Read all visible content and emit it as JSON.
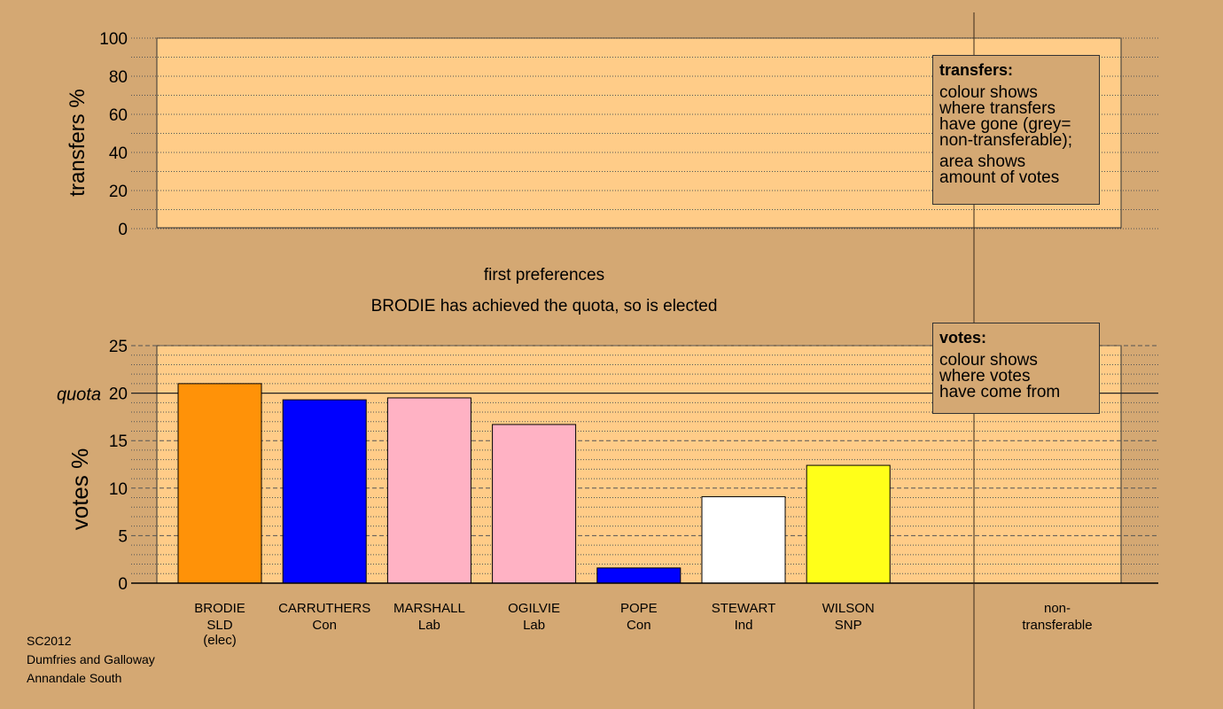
{
  "chart_data": [
    {
      "type": "bar",
      "ylabel": "transfers %",
      "ylim": [
        0,
        100
      ],
      "yticks": [
        0,
        20,
        40,
        60,
        80,
        100
      ],
      "grid": "dotted",
      "series": [],
      "legend": {
        "placement": "top-right",
        "title": "transfers:",
        "paragraphs": [
          [
            "colour shows",
            "where transfers",
            "have gone (grey=",
            "non-transferable);"
          ],
          [
            "area shows",
            "amount of votes"
          ]
        ]
      }
    },
    {
      "type": "bar",
      "title": "first preferences",
      "subtitle": "BRODIE has achieved the quota, so is elected",
      "ylabel": "votes %",
      "ylim": [
        0,
        25
      ],
      "yticks": [
        0,
        5,
        10,
        15,
        20,
        25
      ],
      "quota": 20,
      "quota_label": "quota",
      "grid": "dashed",
      "categories": [
        {
          "name": "BRODIE",
          "party": "SLD",
          "note": "(elec)"
        },
        {
          "name": "CARRUTHERS",
          "party": "Con",
          "note": ""
        },
        {
          "name": "MARSHALL",
          "party": "Lab",
          "note": ""
        },
        {
          "name": "OGILVIE",
          "party": "Lab",
          "note": ""
        },
        {
          "name": "POPE",
          "party": "Con",
          "note": ""
        },
        {
          "name": "STEWART",
          "party": "Ind",
          "note": ""
        },
        {
          "name": "WILSON",
          "party": "SNP",
          "note": ""
        }
      ],
      "values": [
        21.0,
        19.3,
        19.5,
        16.7,
        1.6,
        9.1,
        12.4
      ],
      "colors": [
        "#ff9208",
        "#0000ff",
        "#ffb2c4",
        "#ffb2c4",
        "#0000ff",
        "#ffffff",
        "#ffff19"
      ],
      "extra_category": [
        "non-",
        "transferable"
      ],
      "legend": {
        "placement": "top-right",
        "title": "votes:",
        "paragraphs": [
          [
            "colour shows",
            "where votes",
            "have come from"
          ]
        ]
      }
    }
  ],
  "footer": {
    "line1": "SC2012",
    "line2": "Dumfries and Galloway",
    "line3": "Annandale South"
  }
}
